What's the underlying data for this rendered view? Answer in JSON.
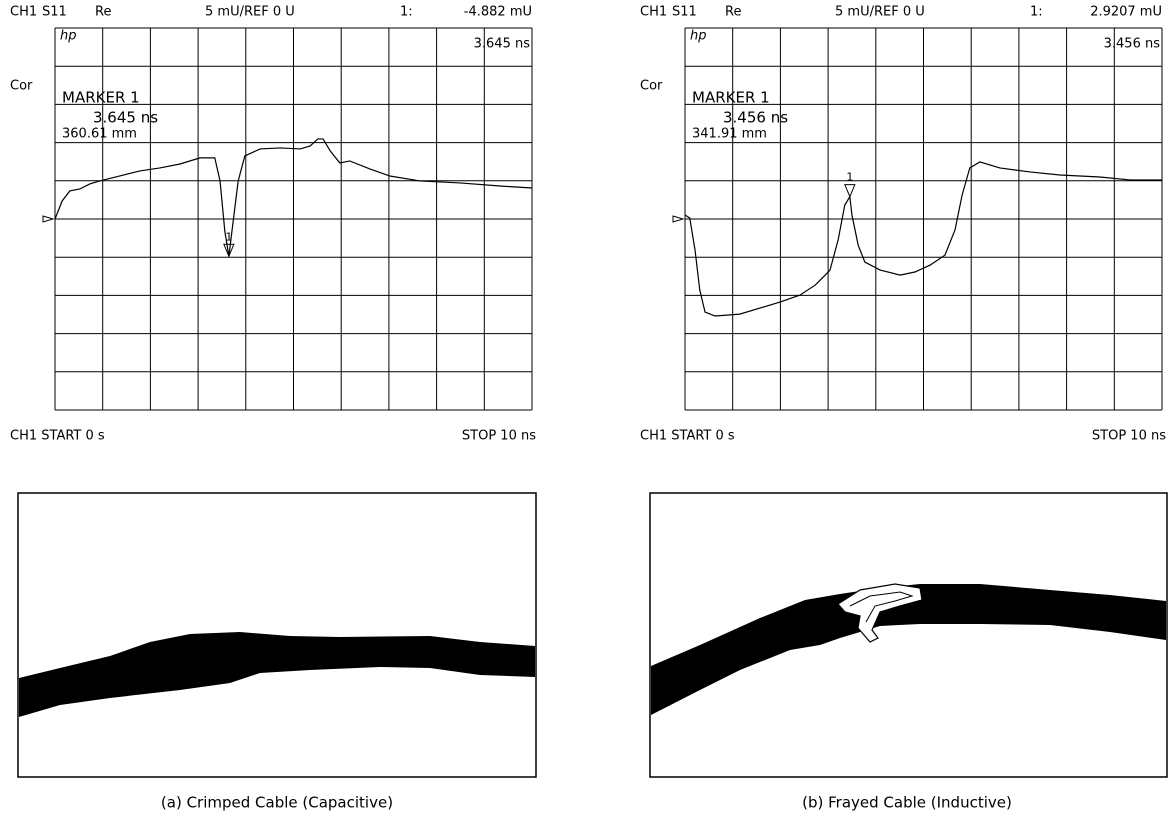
{
  "chart_data": [
    {
      "type": "line",
      "channel": "CH1",
      "parameter": "S11",
      "format": "Re",
      "scale": "5 mU/REF 0 U",
      "marker_readout": "1:",
      "marker_value": "-4.882 mU",
      "logo": "hp",
      "marker_time": "3.645 ns",
      "correction": "Cor",
      "marker_title": "MARKER 1",
      "marker_x_label": "3.645 ns",
      "marker_distance": "360.61 mm",
      "start": "CH1 START 0 s",
      "stop": "STOP 10 ns",
      "x": [
        0,
        0.15,
        0.31,
        0.52,
        0.73,
        0.94,
        1.36,
        1.78,
        2.2,
        2.62,
        3.04,
        3.35,
        3.46,
        3.56,
        3.645,
        3.71,
        3.84,
        3.98,
        4.3,
        4.72,
        5.14,
        5.35,
        5.51,
        5.62,
        5.77,
        5.97,
        6.18,
        6.6,
        7.02,
        7.65,
        8.49,
        9.33,
        10
      ],
      "values": [
        0,
        2.36,
        3.67,
        3.93,
        4.59,
        4.98,
        5.64,
        6.29,
        6.68,
        7.2,
        8.0,
        8.0,
        4.98,
        -1.57,
        -4.882,
        -1.57,
        4.98,
        8.25,
        9.17,
        9.3,
        9.17,
        9.56,
        10.48,
        10.48,
        8.91,
        7.34,
        7.6,
        6.55,
        5.63,
        4.98,
        4.72,
        4.32,
        4.06
      ],
      "xlim": [
        0,
        10
      ],
      "ylim": [
        -25,
        25
      ],
      "color": "#000000",
      "grid": true,
      "marker": {
        "x": 3.645,
        "value": -4.882,
        "label": "1"
      },
      "caption": "(a) Crimped Cable (Capacitive)"
    },
    {
      "type": "line",
      "channel": "CH1",
      "parameter": "S11",
      "format": "Re",
      "scale": "5 mU/REF 0 U",
      "marker_readout": "1:",
      "marker_value": "2.9207 mU",
      "logo": "hp",
      "marker_time": "3.456 ns",
      "correction": "Cor",
      "marker_title": "MARKER 1",
      "marker_x_label": "3.456 ns",
      "marker_distance": "341.91 mm",
      "start": "CH1 START 0 s",
      "stop": "STOP 10 ns",
      "x": [
        0,
        0.1,
        0.21,
        0.31,
        0.42,
        0.63,
        1.15,
        1.57,
        1.99,
        2.41,
        2.73,
        2.94,
        3.04,
        3.21,
        3.35,
        3.456,
        3.5,
        3.63,
        3.77,
        4.09,
        4.51,
        4.82,
        5.14,
        5.45,
        5.66,
        5.81,
        5.97,
        6.18,
        6.6,
        7.23,
        7.86,
        8.7,
        9.33,
        10
      ],
      "values": [
        0.52,
        0.13,
        -4.06,
        -9.3,
        -12.18,
        -12.7,
        -12.45,
        -11.66,
        -10.87,
        -9.96,
        -8.65,
        -7.34,
        -6.68,
        -2.75,
        1.83,
        2.9207,
        0.52,
        -3.41,
        -5.63,
        -6.68,
        -7.34,
        -6.94,
        -6.03,
        -4.72,
        -1.44,
        3.14,
        6.68,
        7.47,
        6.68,
        6.16,
        5.76,
        5.5,
        5.11,
        5.11
      ],
      "xlim": [
        0,
        10
      ],
      "ylim": [
        -25,
        25
      ],
      "color": "#000000",
      "grid": true,
      "marker": {
        "x": 3.456,
        "value": 2.9207,
        "label": "1"
      },
      "caption": "(b) Frayed Cable (Inductive)"
    }
  ]
}
